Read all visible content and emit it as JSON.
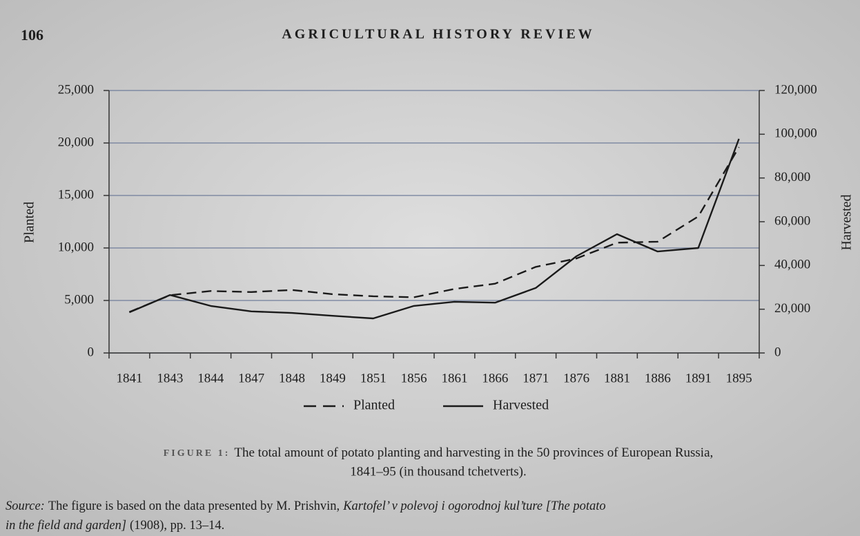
{
  "header": {
    "page": "106",
    "title": "AGRICULTURAL HISTORY REVIEW"
  },
  "chart_data": {
    "type": "line",
    "categories": [
      "1841",
      "1843",
      "1844",
      "1847",
      "1848",
      "1849",
      "1851",
      "1856",
      "1861",
      "1866",
      "1871",
      "1876",
      "1881",
      "1886",
      "1891",
      "1895"
    ],
    "series": [
      {
        "name": "Planted",
        "color": "#1a1a1a",
        "linestyle": "dashed",
        "axis": "y",
        "values": [
          3900,
          5500,
          5900,
          5800,
          6000,
          5600,
          5400,
          5300,
          6100,
          6600,
          8200,
          9000,
          10500,
          10600,
          13000,
          19600
        ]
      },
      {
        "name": "Harvested",
        "color": "#1a1a1a",
        "linestyle": "solid",
        "axis": "y2",
        "values": [
          18600,
          26500,
          21500,
          19000,
          18300,
          17000,
          15800,
          21500,
          23400,
          23000,
          29700,
          44200,
          54300,
          46400,
          48000,
          97900
        ]
      }
    ],
    "ylabel": "Planted",
    "y2label": "Harvested",
    "ylim": [
      0,
      25000
    ],
    "yticks": [
      0,
      {
        "value": 5000,
        "label": "5,000"
      },
      {
        "value": 10000,
        "label": "10,000"
      },
      {
        "value": 15000,
        "label": "15,000"
      },
      {
        "value": 20000,
        "label": "20,000"
      },
      {
        "value": 25000,
        "label": "25,000"
      }
    ],
    "y2lim": [
      0,
      120000
    ],
    "y2ticks": [
      0,
      {
        "value": 20000,
        "label": "20,000"
      },
      {
        "value": 40000,
        "label": "40,000"
      },
      {
        "value": 60000,
        "label": "60,000"
      },
      {
        "value": 80000,
        "label": "80,000"
      },
      {
        "value": 100000,
        "label": "100,000"
      },
      {
        "value": 120000,
        "label": "120,000"
      }
    ],
    "grid": true,
    "grid_color": "#6f7d9a",
    "legend": "bottom"
  },
  "caption": {
    "label": "FIGURE 1:",
    "line1": "The total amount of potato planting and harvesting in the 50 provinces of European Russia,",
    "line2": "1841–95 (in thousand tchetverts).",
    "source_label": "Source:",
    "source_text": "The figure is based on the data presented by M. Prishvin,",
    "source_title1": "Kartofel’ v polevoj i ogorodnoj kul’ture [The potato",
    "source_title2": "in the field and garden]",
    "source_tail": "(1908), pp. 13–14."
  }
}
